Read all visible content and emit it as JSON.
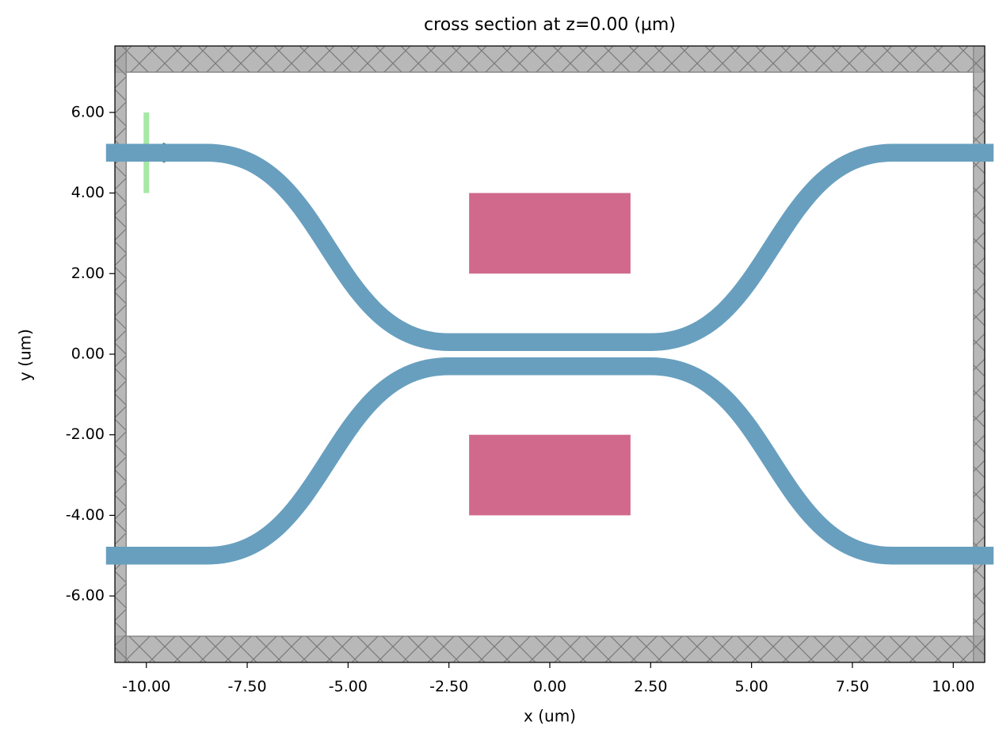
{
  "chart_data": {
    "type": "structure",
    "title": "cross section at z=0.00 (µm)",
    "x_label": "x (um)",
    "y_label": "y (um)",
    "xlim": [
      -10.78,
      10.78
    ],
    "ylim": [
      -7.65,
      7.65
    ],
    "xticks": [
      {
        "value": -10,
        "label": "-10.00"
      },
      {
        "value": -7.5,
        "label": "-7.50"
      },
      {
        "value": -5,
        "label": "-5.00"
      },
      {
        "value": -2.5,
        "label": "-2.50"
      },
      {
        "value": 0,
        "label": "0.00"
      },
      {
        "value": 2.5,
        "label": "2.50"
      },
      {
        "value": 5,
        "label": "5.00"
      },
      {
        "value": 7.5,
        "label": "7.50"
      },
      {
        "value": 10,
        "label": "10.00"
      }
    ],
    "yticks": [
      {
        "value": -6,
        "label": "-6.00"
      },
      {
        "value": -4,
        "label": "-4.00"
      },
      {
        "value": -2,
        "label": "-2.00"
      },
      {
        "value": 0,
        "label": "0.00"
      },
      {
        "value": 2,
        "label": "2.00"
      },
      {
        "value": 4,
        "label": "4.00"
      },
      {
        "value": 6,
        "label": "6.00"
      }
    ],
    "waveguides": {
      "color": "#689fbf",
      "width": 0.44,
      "paths": [
        {
          "x": [
            -11,
            -8.5,
            -2.5,
            2.5,
            8.5,
            11
          ],
          "y": [
            5,
            5,
            0.3,
            0.3,
            5,
            5
          ]
        },
        {
          "x": [
            -11,
            -8.5,
            -2.5,
            2.5,
            8.5,
            11
          ],
          "y": [
            -5,
            -5,
            -0.3,
            -0.3,
            -5,
            -5
          ]
        }
      ]
    },
    "boxes": {
      "color": "#d0698c",
      "rects": [
        {
          "x": [
            -2,
            2
          ],
          "y": [
            2,
            4
          ]
        },
        {
          "x": [
            -2,
            2
          ],
          "y": [
            -4,
            -2
          ]
        }
      ]
    },
    "pml": {
      "color": "#a6a6a6",
      "regions": [
        {
          "x": [
            -10.78,
            10.78
          ],
          "y": [
            7,
            7.65
          ]
        },
        {
          "x": [
            -10.78,
            10.78
          ],
          "y": [
            -7.65,
            -7
          ]
        },
        {
          "x": [
            -10.78,
            -10.5
          ],
          "y": [
            -7.65,
            7.65
          ]
        },
        {
          "x": [
            10.5,
            10.78
          ],
          "y": [
            -7.65,
            7.65
          ]
        }
      ]
    },
    "source": {
      "color": "#a6e8a6",
      "x": -10,
      "y": [
        4,
        6
      ],
      "arrow": {
        "color": "#18704f",
        "x": [
          -9.9,
          -8.95
        ],
        "y": 5
      }
    }
  }
}
